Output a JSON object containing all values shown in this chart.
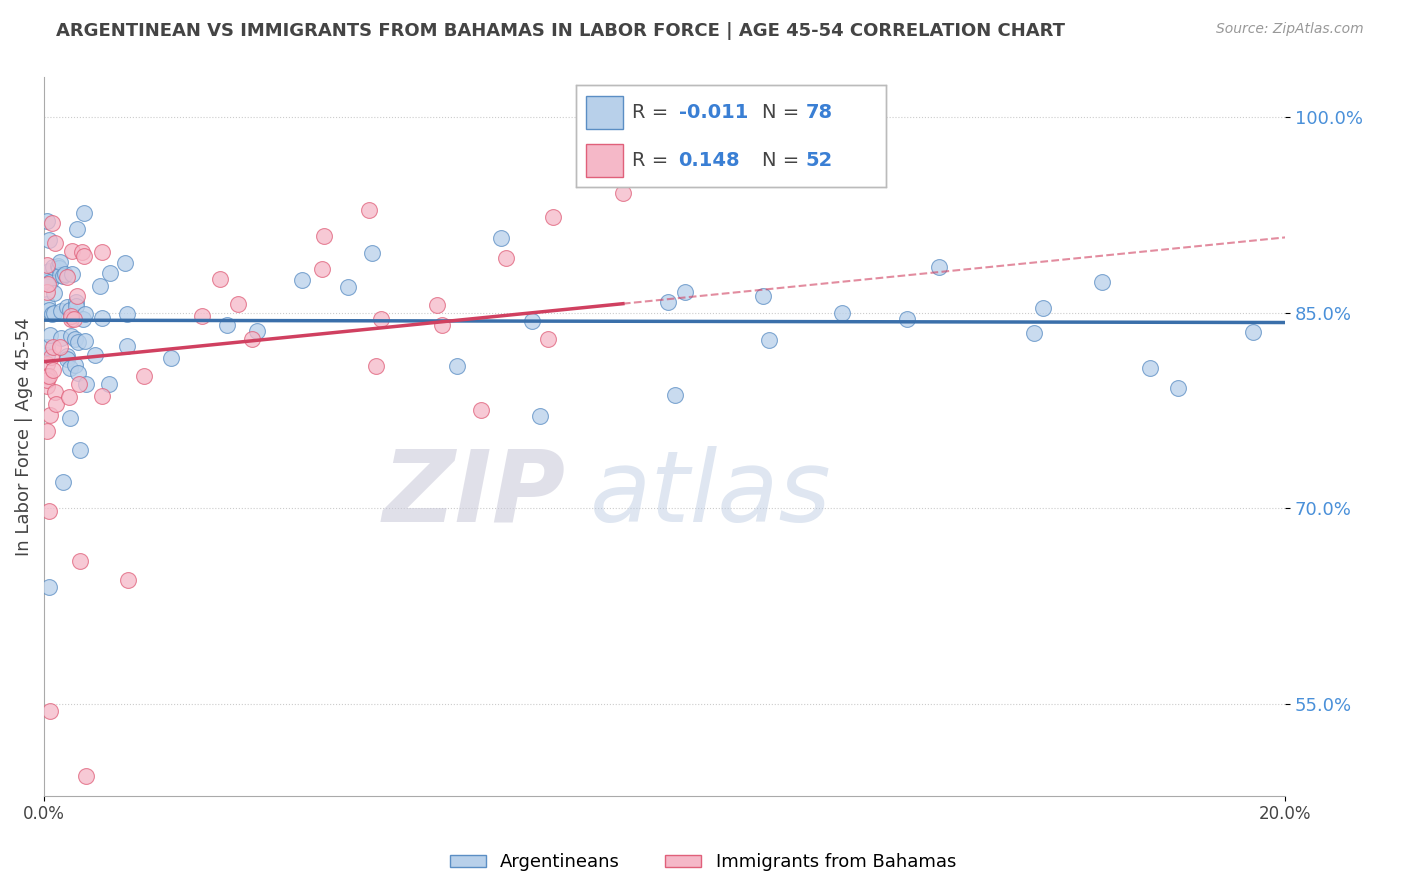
{
  "title": "ARGENTINEAN VS IMMIGRANTS FROM BAHAMAS IN LABOR FORCE | AGE 45-54 CORRELATION CHART",
  "source": "Source: ZipAtlas.com",
  "ylabel": "In Labor Force | Age 45-54",
  "xlim": [
    0.0,
    0.2
  ],
  "ylim": [
    0.48,
    1.03
  ],
  "yticks": [
    0.55,
    0.7,
    0.85,
    1.0
  ],
  "ytick_labels": [
    "55.0%",
    "70.0%",
    "85.0%",
    "100.0%"
  ],
  "legend_r_blue": "-0.011",
  "legend_n_blue": "78",
  "legend_r_pink": "0.148",
  "legend_n_pink": "52",
  "blue_fill": "#b8d0ea",
  "blue_edge": "#5b8ec4",
  "pink_fill": "#f5b8c8",
  "pink_edge": "#e0607a",
  "blue_line": "#3a6faa",
  "pink_line": "#d04060",
  "grid_color": "#cccccc",
  "text_color": "#444444",
  "tick_color_right": "#4a90d9",
  "watermark_zip_color": "#c8c8d8",
  "watermark_atlas_color": "#b8c8e0"
}
